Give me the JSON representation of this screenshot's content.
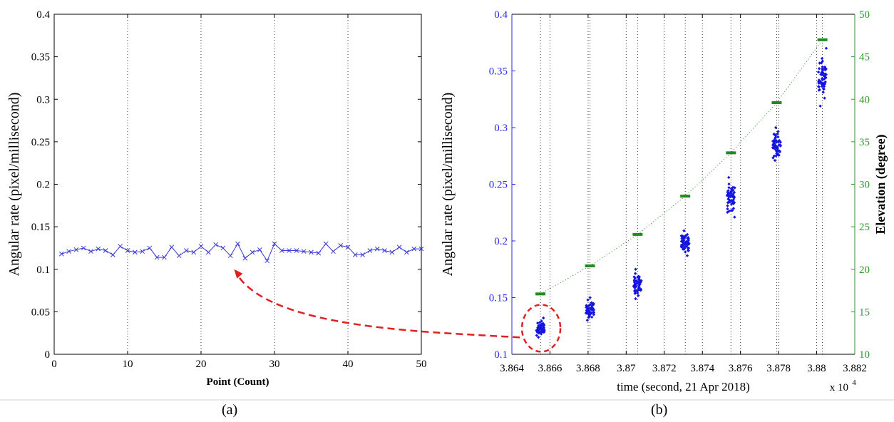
{
  "chart_data": [
    {
      "type": "line",
      "panel_label": "(a)",
      "xlabel": "Point (Count)",
      "ylabel": "Angular rate (pixel/millisecond)",
      "xlim": [
        0,
        50
      ],
      "ylim": [
        0,
        0.4
      ],
      "x_ticks": [
        "0",
        "10",
        "20",
        "30",
        "40",
        "50"
      ],
      "y_ticks": [
        "0",
        "0.05",
        "0.1",
        "0.15",
        "0.2",
        "0.25",
        "0.3",
        "0.35",
        "0.4"
      ],
      "grid": "vertical dotted at x ticks",
      "series": [
        {
          "marker": "x",
          "color": "#3a3ad8",
          "x": [
            1,
            2,
            3,
            4,
            5,
            6,
            7,
            8,
            9,
            10,
            11,
            12,
            13,
            14,
            15,
            16,
            17,
            18,
            19,
            20,
            21,
            22,
            23,
            24,
            25,
            26,
            27,
            28,
            29,
            30,
            31,
            32,
            33,
            34,
            35,
            36,
            37,
            38,
            39,
            40,
            41,
            42,
            43,
            44,
            45,
            46,
            47,
            48,
            49,
            50
          ],
          "values": [
            0.118,
            0.121,
            0.123,
            0.125,
            0.121,
            0.124,
            0.122,
            0.117,
            0.127,
            0.122,
            0.12,
            0.121,
            0.125,
            0.114,
            0.114,
            0.126,
            0.116,
            0.122,
            0.12,
            0.127,
            0.12,
            0.129,
            0.125,
            0.116,
            0.13,
            0.113,
            0.12,
            0.123,
            0.11,
            0.13,
            0.122,
            0.122,
            0.122,
            0.121,
            0.12,
            0.119,
            0.13,
            0.121,
            0.128,
            0.126,
            0.117,
            0.117,
            0.122,
            0.124,
            0.122,
            0.12,
            0.126,
            0.12,
            0.124,
            0.124
          ]
        }
      ]
    },
    {
      "type": "scatter",
      "panel_label": "(b)",
      "xlabel": "time (second, 21 Apr 2018)",
      "x_multiplier": "x 10",
      "x_multiplier_exp": "4",
      "ylabel": "Angular rate (pixel/millisecond)",
      "y2label": "Elevation (degree)",
      "xlim": [
        3.864,
        3.882
      ],
      "ylim": [
        0.1,
        0.4
      ],
      "y2lim": [
        10,
        50
      ],
      "x_ticks": [
        "3.864",
        "3.866",
        "3.868",
        "3.87",
        "3.872",
        "3.874",
        "3.876",
        "3.878",
        "3.88",
        "3.882"
      ],
      "y_ticks": [
        "0.1",
        "0.15",
        "0.2",
        "0.25",
        "0.3",
        "0.35",
        "0.4"
      ],
      "y2_ticks": [
        "10",
        "15",
        "20",
        "25",
        "30",
        "35",
        "40",
        "45",
        "50"
      ],
      "grid": "vertical dotted",
      "colors": {
        "left_axis": "#2a2af0",
        "right_axis": "#2e9a2e",
        "rate": "#1515e0",
        "elevation": "#1f8a1f",
        "highlight": "#e02020"
      },
      "series": [
        {
          "axis": "left",
          "marker": "point cluster",
          "x": [
            3.8655,
            3.8681,
            3.8706,
            3.8731,
            3.8755,
            3.8779,
            3.8803
          ],
          "center": [
            0.123,
            0.14,
            0.164,
            0.197,
            0.236,
            0.285,
            0.345
          ],
          "min": [
            0.115,
            0.13,
            0.149,
            0.187,
            0.221,
            0.271,
            0.319
          ],
          "max": [
            0.132,
            0.15,
            0.175,
            0.209,
            0.256,
            0.3,
            0.37
          ]
        },
        {
          "axis": "right",
          "marker": "short dash, connected by dotted line",
          "x": [
            3.8655,
            3.8681,
            3.8706,
            3.8731,
            3.8755,
            3.8779,
            3.8803
          ],
          "values": [
            17.1,
            20.4,
            24.1,
            28.6,
            33.7,
            39.6,
            47.0
          ]
        }
      ],
      "annotations": [
        {
          "kind": "dashed ellipse + dashed arrow",
          "from": "first cluster in (b)",
          "to": "series in (a)"
        }
      ]
    }
  ]
}
